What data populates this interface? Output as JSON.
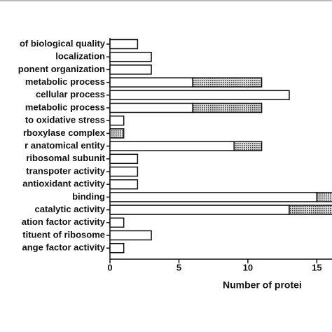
{
  "chart_data": {
    "type": "stacked-bar-horizontal",
    "xlabel": "Number of protei",
    "categories": [
      "of biological quality",
      "localization",
      "ponent organization",
      "metabolic process",
      "cellular process",
      "metabolic process",
      "to oxidative stress",
      "rboxylase complex",
      "r anatomical entity",
      "ribosomal subunit",
      "transpoter activity",
      "antioxidant activity",
      "binding",
      "catalytic activity",
      "ation factor activity",
      "tituent of ribosome",
      "ange factor activity"
    ],
    "series": [
      {
        "color": "#ffffff",
        "values": [
          2,
          3,
          3,
          6,
          13,
          6,
          1,
          0,
          9,
          2,
          2,
          2,
          15,
          13,
          1,
          3,
          1
        ]
      },
      {
        "color": "#444444",
        "values": [
          0,
          0,
          0,
          5,
          0,
          5,
          0,
          1,
          2,
          0,
          0,
          0,
          2,
          4,
          0,
          0,
          0
        ]
      }
    ],
    "xlim": [
      0,
      16.1
    ],
    "xticks": [
      0,
      5,
      10,
      15
    ]
  }
}
